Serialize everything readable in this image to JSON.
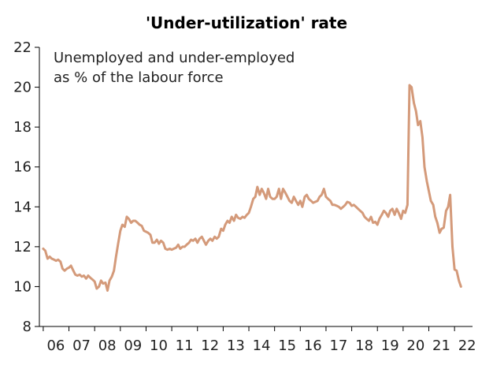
{
  "chart_data": {
    "type": "line",
    "title": "'Under-utilization' rate",
    "annotation": [
      "Unemployed and under-employed",
      "as  % of the labour force"
    ],
    "xlabel": "",
    "ylabel": "",
    "ylim": [
      8,
      22
    ],
    "xlim": [
      2005.85,
      2022.7
    ],
    "y_ticks": [
      "8",
      "10",
      "12",
      "14",
      "16",
      "18",
      "20",
      "22"
    ],
    "x_ticks": [
      {
        "label": "06",
        "year": 2006
      },
      {
        "label": "07",
        "year": 2007
      },
      {
        "label": "08",
        "year": 2008
      },
      {
        "label": "09",
        "year": 2009
      },
      {
        "label": "10",
        "year": 2010
      },
      {
        "label": "11",
        "year": 2011
      },
      {
        "label": "12",
        "year": 2012
      },
      {
        "label": "13",
        "year": 2013
      },
      {
        "label": "14",
        "year": 2014
      },
      {
        "label": "15",
        "year": 2015
      },
      {
        "label": "16",
        "year": 2016
      },
      {
        "label": "17",
        "year": 2017
      },
      {
        "label": "18",
        "year": 2018
      },
      {
        "label": "19",
        "year": 2019
      },
      {
        "label": "20",
        "year": 2020
      },
      {
        "label": "21",
        "year": 2021
      },
      {
        "label": "22",
        "year": 2022
      }
    ],
    "grid": false,
    "line_color": "#d49a7a",
    "series": [
      {
        "x": [
          2006.0,
          2006.08,
          2006.17,
          2006.25,
          2006.33,
          2006.42,
          2006.5,
          2006.58,
          2006.67,
          2006.75,
          2006.83,
          2006.92,
          2007.0,
          2007.08,
          2007.17,
          2007.25,
          2007.33,
          2007.42,
          2007.5,
          2007.58,
          2007.67,
          2007.75,
          2007.83,
          2007.92,
          2008.0,
          2008.08,
          2008.17,
          2008.25,
          2008.33,
          2008.42,
          2008.5,
          2008.58,
          2008.67,
          2008.75,
          2008.83,
          2008.92,
          2009.0,
          2009.08,
          2009.17,
          2009.25,
          2009.33,
          2009.42,
          2009.5,
          2009.58,
          2009.67,
          2009.75,
          2009.83,
          2009.92,
          2010.0,
          2010.08,
          2010.17,
          2010.25,
          2010.33,
          2010.42,
          2010.5,
          2010.58,
          2010.67,
          2010.75,
          2010.83,
          2010.92,
          2011.0,
          2011.08,
          2011.17,
          2011.25,
          2011.33,
          2011.42,
          2011.5,
          2011.58,
          2011.67,
          2011.75,
          2011.83,
          2011.92,
          2012.0,
          2012.08,
          2012.17,
          2012.25,
          2012.33,
          2012.42,
          2012.5,
          2012.58,
          2012.67,
          2012.75,
          2012.83,
          2012.92,
          2013.0,
          2013.08,
          2013.17,
          2013.25,
          2013.33,
          2013.42,
          2013.5,
          2013.58,
          2013.67,
          2013.75,
          2013.83,
          2013.92,
          2014.0,
          2014.08,
          2014.17,
          2014.25,
          2014.33,
          2014.42,
          2014.5,
          2014.58,
          2014.67,
          2014.75,
          2014.83,
          2014.92,
          2015.0,
          2015.08,
          2015.17,
          2015.25,
          2015.33,
          2015.42,
          2015.5,
          2015.58,
          2015.67,
          2015.75,
          2015.83,
          2015.92,
          2016.0,
          2016.08,
          2016.17,
          2016.25,
          2016.33,
          2016.42,
          2016.5,
          2016.58,
          2016.67,
          2016.75,
          2016.83,
          2016.92,
          2017.0,
          2017.08,
          2017.17,
          2017.25,
          2017.33,
          2017.42,
          2017.5,
          2017.58,
          2017.67,
          2017.75,
          2017.83,
          2017.92,
          2018.0,
          2018.08,
          2018.17,
          2018.25,
          2018.33,
          2018.42,
          2018.5,
          2018.58,
          2018.67,
          2018.75,
          2018.83,
          2018.92,
          2019.0,
          2019.08,
          2019.17,
          2019.25,
          2019.33,
          2019.42,
          2019.5,
          2019.58,
          2019.67,
          2019.75,
          2019.83,
          2019.92,
          2020.0,
          2020.08,
          2020.17,
          2020.25,
          2020.33,
          2020.42,
          2020.5,
          2020.58,
          2020.67,
          2020.75,
          2020.83,
          2020.92,
          2021.0,
          2021.08,
          2021.17,
          2021.25,
          2021.33,
          2021.42,
          2021.5,
          2021.58,
          2021.67,
          2021.75,
          2021.83,
          2021.92,
          2022.0,
          2022.08,
          2022.17,
          2022.25
        ],
        "y": [
          11.9,
          11.8,
          11.4,
          11.5,
          11.4,
          11.35,
          11.3,
          11.35,
          11.25,
          10.9,
          10.8,
          10.9,
          10.95,
          11.05,
          10.8,
          10.6,
          10.55,
          10.6,
          10.5,
          10.55,
          10.4,
          10.55,
          10.45,
          10.35,
          10.25,
          9.9,
          10.0,
          10.3,
          10.15,
          10.2,
          9.8,
          10.3,
          10.5,
          10.8,
          11.5,
          12.2,
          12.8,
          13.1,
          13.0,
          13.5,
          13.4,
          13.2,
          13.3,
          13.3,
          13.2,
          13.1,
          13.05,
          12.8,
          12.75,
          12.7,
          12.6,
          12.2,
          12.2,
          12.35,
          12.15,
          12.3,
          12.2,
          11.9,
          11.85,
          11.9,
          11.85,
          11.9,
          11.95,
          12.1,
          11.9,
          12.0,
          12.0,
          12.1,
          12.2,
          12.35,
          12.3,
          12.4,
          12.2,
          12.4,
          12.5,
          12.3,
          12.1,
          12.3,
          12.4,
          12.3,
          12.5,
          12.4,
          12.5,
          12.9,
          12.8,
          13.1,
          13.3,
          13.2,
          13.5,
          13.3,
          13.6,
          13.45,
          13.4,
          13.5,
          13.45,
          13.6,
          13.7,
          14.0,
          14.4,
          14.5,
          15.0,
          14.6,
          14.9,
          14.7,
          14.4,
          14.9,
          14.5,
          14.4,
          14.4,
          14.5,
          14.9,
          14.4,
          14.9,
          14.7,
          14.5,
          14.3,
          14.2,
          14.5,
          14.3,
          14.1,
          14.3,
          14.0,
          14.5,
          14.6,
          14.4,
          14.3,
          14.2,
          14.25,
          14.3,
          14.5,
          14.6,
          14.9,
          14.5,
          14.4,
          14.3,
          14.1,
          14.1,
          14.05,
          14.0,
          13.9,
          14.0,
          14.1,
          14.25,
          14.2,
          14.05,
          14.1,
          14.0,
          13.9,
          13.8,
          13.7,
          13.5,
          13.4,
          13.3,
          13.5,
          13.2,
          13.25,
          13.1,
          13.4,
          13.6,
          13.8,
          13.7,
          13.5,
          13.8,
          13.9,
          13.6,
          13.9,
          13.7,
          13.4,
          13.8,
          13.7,
          14.1,
          20.1,
          20.0,
          19.2,
          18.8,
          18.1,
          18.3,
          17.5,
          16.0,
          15.3,
          14.8,
          14.3,
          14.1,
          13.5,
          13.2,
          12.7,
          12.9,
          12.95,
          13.8,
          14.0,
          14.6,
          12.0,
          10.85,
          10.8,
          10.3,
          10.0
        ]
      }
    ]
  }
}
